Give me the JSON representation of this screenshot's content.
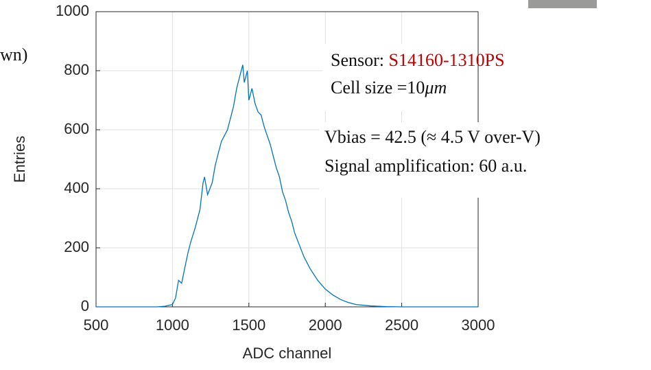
{
  "chart_data": {
    "type": "line",
    "xlabel": "ADC channel",
    "ylabel": "Entries",
    "x": [
      500,
      900,
      950,
      1000,
      1020,
      1040,
      1060,
      1080,
      1100,
      1120,
      1150,
      1180,
      1200,
      1210,
      1230,
      1260,
      1280,
      1300,
      1320,
      1340,
      1360,
      1380,
      1400,
      1420,
      1440,
      1460,
      1470,
      1490,
      1500,
      1520,
      1540,
      1560,
      1580,
      1600,
      1620,
      1640,
      1660,
      1680,
      1700,
      1720,
      1740,
      1760,
      1780,
      1800,
      1830,
      1860,
      1900,
      1950,
      2000,
      2050,
      2100,
      2150,
      2200,
      2300,
      2400,
      2500,
      3000
    ],
    "values": [
      0,
      0,
      2,
      8,
      30,
      90,
      80,
      130,
      180,
      220,
      270,
      330,
      420,
      440,
      380,
      420,
      480,
      520,
      560,
      580,
      600,
      640,
      680,
      740,
      780,
      820,
      760,
      800,
      700,
      740,
      690,
      660,
      650,
      610,
      580,
      550,
      510,
      470,
      440,
      390,
      360,
      320,
      290,
      250,
      210,
      170,
      130,
      90,
      60,
      40,
      25,
      15,
      8,
      3,
      1,
      0,
      0
    ],
    "color": "#0072bd",
    "xlim": [
      500,
      3000
    ],
    "xticks": [
      500,
      1000,
      1500,
      2000,
      2500,
      3000
    ],
    "ylim": [
      0,
      1000
    ],
    "yticks": [
      0,
      200,
      400,
      600,
      800,
      1000
    ],
    "grid": true,
    "annotations": [
      "wn)",
      "Sensor: ",
      "S14160-1310PS",
      "Cell size =10",
      "μm",
      "Vbias = 42.5 (≈ 4.5 V over-V)",
      "Signal amplification: 60 a.u."
    ]
  }
}
